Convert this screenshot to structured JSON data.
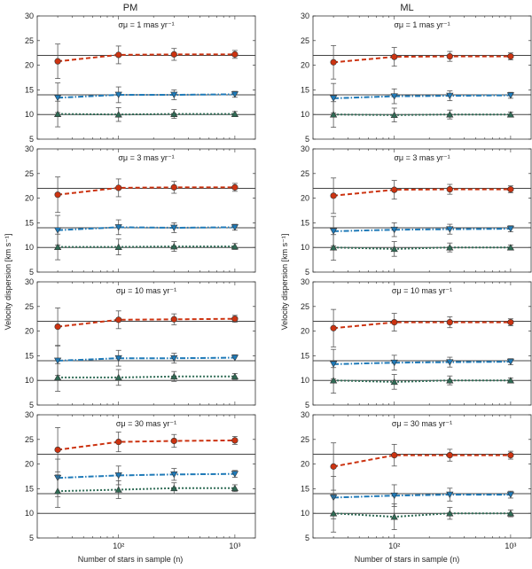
{
  "figure": {
    "columns": [
      "PM",
      "ML"
    ],
    "ylabel": "Velocity dispersion [km s⁻¹]",
    "xlabel": "Number of stars in sample (n)",
    "xtick_labels": [
      "10²",
      "10³"
    ],
    "ytick_labels": [
      "5",
      "10",
      "15",
      "20",
      "25",
      "30"
    ],
    "colors": {
      "red": "#cc3311",
      "blue": "#1f7ab8",
      "green": "#2f6b55",
      "line": "#444444",
      "err": "#555555"
    }
  },
  "chart_data": {
    "type": "line",
    "x": [
      30,
      100,
      300,
      1000
    ],
    "xscale": "log",
    "xlim": [
      20,
      1500
    ],
    "ylim": [
      5,
      30
    ],
    "reference_lines": [
      10,
      14,
      22
    ],
    "panels": [
      {
        "column": "PM",
        "title": "σμ = 1 mas yr⁻¹",
        "series": [
          {
            "name": "red",
            "marker": "circle",
            "values": [
              20.8,
              22.1,
              22.2,
              22.2
            ],
            "errors": [
              3.5,
              1.8,
              1.2,
              0.8
            ]
          },
          {
            "name": "blue",
            "marker": "triangle-down",
            "values": [
              13.4,
              14.0,
              14.0,
              14.1
            ],
            "errors": [
              3.0,
              1.6,
              1.0,
              0.6
            ]
          },
          {
            "name": "green",
            "marker": "triangle-up",
            "values": [
              10.1,
              10.0,
              10.1,
              10.1
            ],
            "errors": [
              2.6,
              1.4,
              0.9,
              0.5
            ]
          }
        ]
      },
      {
        "column": "ML",
        "title": "σμ = 1 mas yr⁻¹",
        "series": [
          {
            "name": "red",
            "marker": "circle",
            "values": [
              20.6,
              21.7,
              21.8,
              21.8
            ],
            "errors": [
              3.4,
              1.9,
              1.0,
              0.7
            ]
          },
          {
            "name": "blue",
            "marker": "triangle-down",
            "values": [
              13.3,
              13.7,
              13.8,
              13.9
            ],
            "errors": [
              3.0,
              1.5,
              1.0,
              0.6
            ]
          },
          {
            "name": "green",
            "marker": "triangle-up",
            "values": [
              10.0,
              9.9,
              10.0,
              10.0
            ],
            "errors": [
              2.6,
              1.4,
              0.9,
              0.5
            ]
          }
        ]
      },
      {
        "column": "PM",
        "title": "σμ = 3 mas yr⁻¹",
        "series": [
          {
            "name": "red",
            "marker": "circle",
            "values": [
              20.7,
              22.1,
              22.2,
              22.2
            ],
            "errors": [
              3.6,
              1.8,
              1.2,
              0.8
            ]
          },
          {
            "name": "blue",
            "marker": "triangle-down",
            "values": [
              13.5,
              14.1,
              14.0,
              14.1
            ],
            "errors": [
              3.0,
              1.5,
              1.0,
              0.6
            ]
          },
          {
            "name": "green",
            "marker": "triangle-up",
            "values": [
              10.1,
              10.1,
              10.2,
              10.2
            ],
            "errors": [
              2.6,
              1.6,
              1.0,
              0.6
            ]
          }
        ]
      },
      {
        "column": "ML",
        "title": "σμ = 3 mas yr⁻¹",
        "series": [
          {
            "name": "red",
            "marker": "circle",
            "values": [
              20.5,
              21.7,
              21.8,
              21.8
            ],
            "errors": [
              3.6,
              1.9,
              1.0,
              0.7
            ]
          },
          {
            "name": "blue",
            "marker": "triangle-down",
            "values": [
              13.3,
              13.6,
              13.7,
              13.8
            ],
            "errors": [
              3.0,
              1.4,
              1.0,
              0.6
            ]
          },
          {
            "name": "green",
            "marker": "triangle-up",
            "values": [
              10.0,
              9.7,
              10.0,
              10.0
            ],
            "errors": [
              2.6,
              1.5,
              0.9,
              0.5
            ]
          }
        ]
      },
      {
        "column": "PM",
        "title": "σμ = 10 mas yr⁻¹",
        "series": [
          {
            "name": "red",
            "marker": "circle",
            "values": [
              20.9,
              22.3,
              22.4,
              22.5
            ],
            "errors": [
              3.8,
              1.8,
              1.1,
              0.7
            ]
          },
          {
            "name": "blue",
            "marker": "triangle-down",
            "values": [
              14.0,
              14.5,
              14.5,
              14.6
            ],
            "errors": [
              3.0,
              1.6,
              1.0,
              0.6
            ]
          },
          {
            "name": "green",
            "marker": "triangle-up",
            "values": [
              10.6,
              10.6,
              10.8,
              10.8
            ],
            "errors": [
              2.8,
              1.6,
              1.0,
              0.6
            ]
          }
        ]
      },
      {
        "column": "ML",
        "title": "σμ = 10 mas yr⁻¹",
        "series": [
          {
            "name": "red",
            "marker": "circle",
            "values": [
              20.6,
              21.8,
              21.8,
              21.8
            ],
            "errors": [
              3.8,
              1.8,
              1.1,
              0.7
            ]
          },
          {
            "name": "blue",
            "marker": "triangle-down",
            "values": [
              13.3,
              13.6,
              13.7,
              13.8
            ],
            "errors": [
              3.0,
              1.5,
              1.0,
              0.6
            ]
          },
          {
            "name": "green",
            "marker": "triangle-up",
            "values": [
              10.0,
              9.7,
              10.0,
              10.0
            ],
            "errors": [
              2.6,
              1.5,
              0.9,
              0.5
            ]
          }
        ]
      },
      {
        "column": "PM",
        "title": "σμ = 30 mas yr⁻¹",
        "series": [
          {
            "name": "red",
            "marker": "circle",
            "values": [
              22.9,
              24.5,
              24.7,
              24.8
            ],
            "errors": [
              4.5,
              2.0,
              1.3,
              0.8
            ]
          },
          {
            "name": "blue",
            "marker": "triangle-down",
            "values": [
              17.2,
              17.7,
              17.9,
              18.0
            ],
            "errors": [
              3.8,
              1.9,
              1.2,
              0.7
            ]
          },
          {
            "name": "green",
            "marker": "triangle-up",
            "values": [
              14.5,
              14.8,
              15.1,
              15.1
            ],
            "errors": [
              3.3,
              1.8,
              1.1,
              0.7
            ]
          }
        ]
      },
      {
        "column": "ML",
        "title": "σμ = 30 mas yr⁻¹",
        "series": [
          {
            "name": "red",
            "marker": "circle",
            "values": [
              19.5,
              21.8,
              21.8,
              21.8
            ],
            "errors": [
              4.8,
              2.2,
              1.2,
              0.8
            ]
          },
          {
            "name": "blue",
            "marker": "triangle-down",
            "values": [
              13.2,
              13.6,
              13.8,
              13.8
            ],
            "errors": [
              4.3,
              2.2,
              1.3,
              0.7
            ]
          },
          {
            "name": "green",
            "marker": "triangle-up",
            "values": [
              10.0,
              9.3,
              10.0,
              10.0
            ],
            "errors": [
              3.8,
              2.6,
              1.2,
              0.7
            ]
          }
        ]
      }
    ]
  }
}
